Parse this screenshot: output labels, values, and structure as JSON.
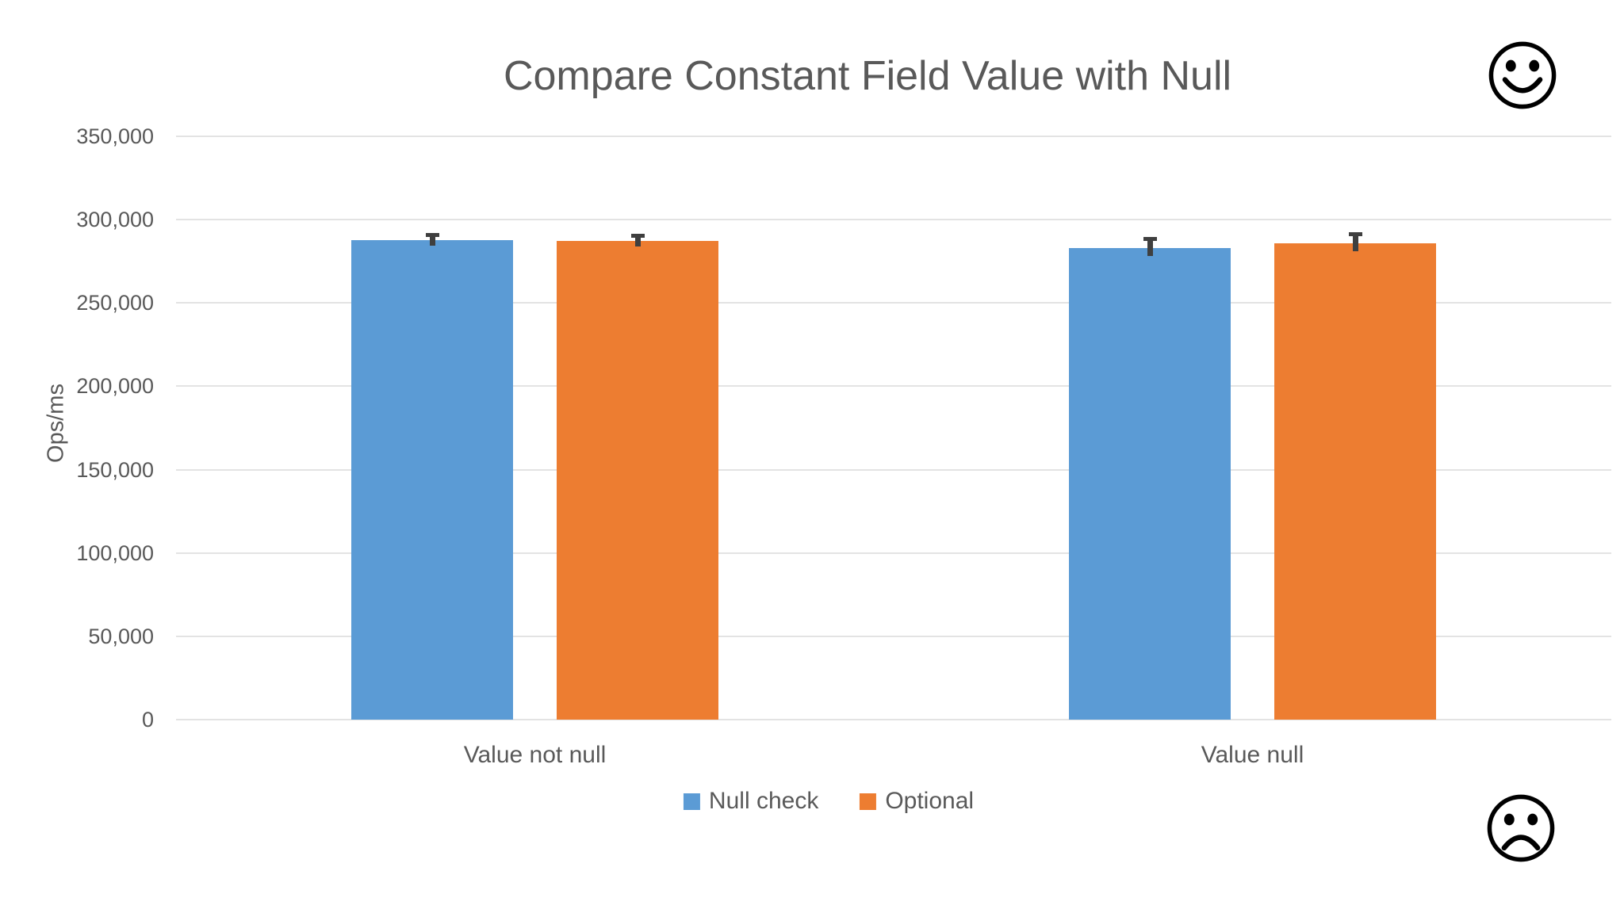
{
  "icons": {
    "top_right": "smiley-face",
    "bottom_right": "sad-face"
  },
  "chart_data": {
    "type": "bar",
    "title": "Compare Constant Field Value with Null",
    "ylabel": "Ops/ms",
    "xlabel": "",
    "categories": [
      "Value not null",
      "Value null"
    ],
    "series": [
      {
        "name": "Null check",
        "color": "#5B9BD5",
        "values": [
          287500,
          283000
        ],
        "error": [
          3000,
          5000
        ]
      },
      {
        "name": "Optional",
        "color": "#ED7D31",
        "values": [
          287000,
          286000
        ],
        "error": [
          3000,
          5000
        ]
      }
    ],
    "ylim": [
      0,
      350000
    ],
    "ytick_step": 50000,
    "ytick_labels": [
      "0",
      "50,000",
      "100,000",
      "150,000",
      "200,000",
      "250,000",
      "300,000",
      "350,000"
    ],
    "grid": true,
    "legend_position": "bottom",
    "colors": {
      "text": "#595959",
      "gridline": "#e3e3e3",
      "error_bar": "#3f3f3f",
      "background": "#ffffff"
    }
  }
}
